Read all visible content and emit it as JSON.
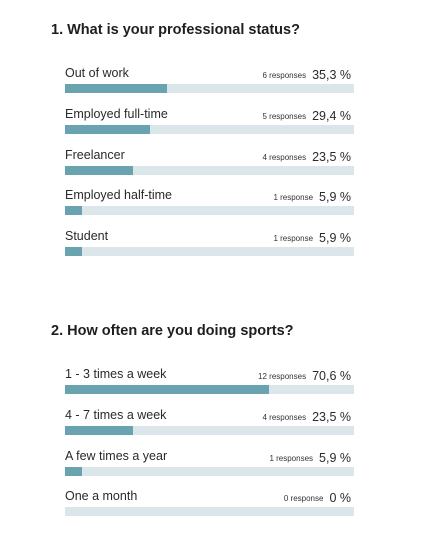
{
  "chart_data": [
    {
      "type": "bar",
      "title": "1. What is your professional status?",
      "categories": [
        "Out of work",
        "Employed full-time",
        "Freelancer",
        "Employed half-time",
        "Student"
      ],
      "counts": [
        "6 responses",
        "5 responses",
        "4 responses",
        "1 response",
        "1 response"
      ],
      "percent_labels": [
        "35,3 %",
        "29,4 %",
        "23,5 %",
        "5,9 %",
        "5,9 %"
      ],
      "values": [
        35.3,
        29.4,
        23.5,
        5.9,
        5.9
      ],
      "xlim": [
        0,
        100
      ],
      "colors": {
        "fill": "#6aa3b0",
        "track": "#dbe6ea"
      }
    },
    {
      "type": "bar",
      "title": "2. How often are you doing sports?",
      "categories": [
        "1 - 3 times a week",
        "4 - 7 times a week",
        "A few times a year",
        "One a month"
      ],
      "counts": [
        "12 responses",
        "4 responses",
        "1 responses",
        "0 response"
      ],
      "percent_labels": [
        "70,6 %",
        "23,5 %",
        "5,9 %",
        "0 %"
      ],
      "values": [
        70.6,
        23.5,
        5.9,
        0
      ],
      "xlim": [
        0,
        100
      ],
      "colors": {
        "fill": "#6aa3b0",
        "track": "#dbe6ea"
      }
    }
  ]
}
